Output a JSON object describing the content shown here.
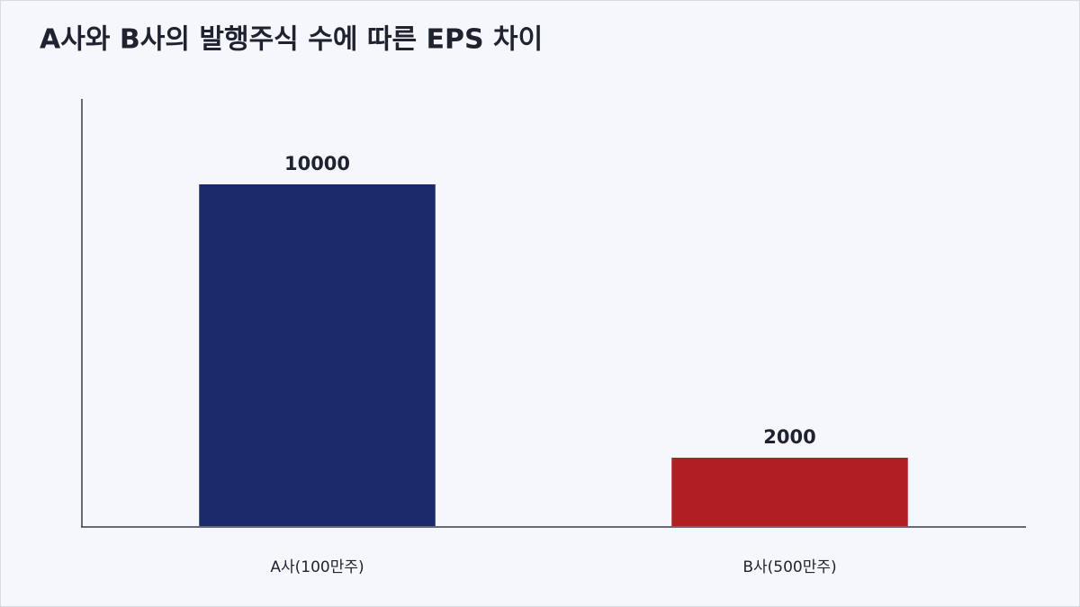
{
  "chart_data": {
    "type": "bar",
    "title": "A사와 B사의 발행주식 수에 따른 EPS 차이",
    "categories": [
      "A사(100만주)",
      "B사(500만주)"
    ],
    "values": [
      10000,
      2000
    ],
    "colors": [
      "#1c2a6b",
      "#b01f22"
    ],
    "ylim": [
      0,
      12500
    ]
  }
}
